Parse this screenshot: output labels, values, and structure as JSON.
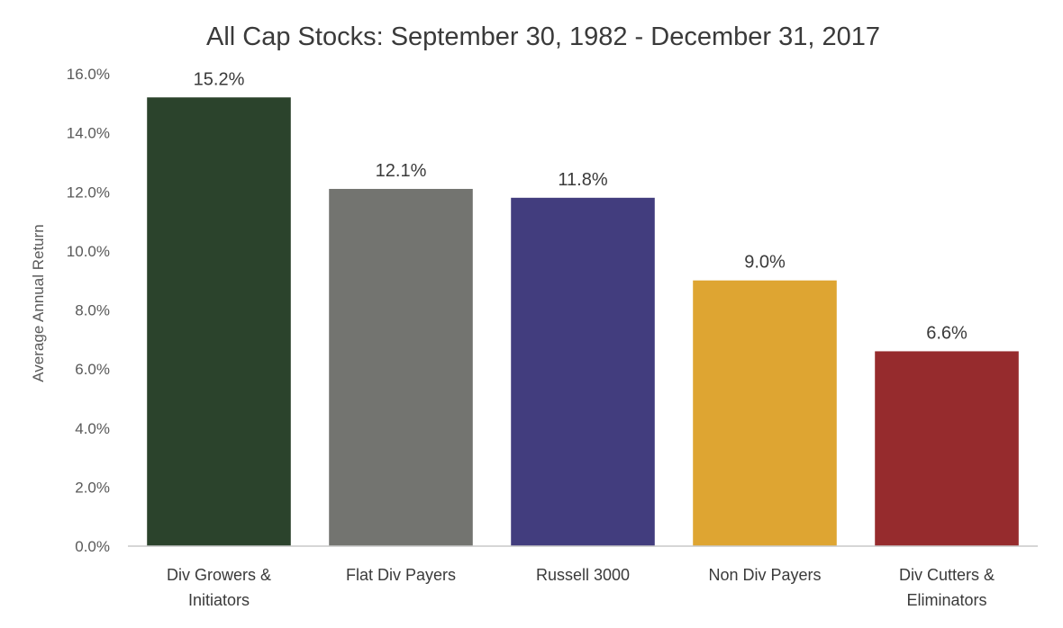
{
  "chart_data": {
    "type": "bar",
    "title": "All Cap Stocks: September 30, 1982 - December 31, 2017",
    "xlabel": "",
    "ylabel": "Average Annual Return",
    "ylim": [
      0,
      16
    ],
    "ytick_step": 2,
    "ytick_labels": [
      "0.0%",
      "2.0%",
      "4.0%",
      "6.0%",
      "8.0%",
      "10.0%",
      "12.0%",
      "14.0%",
      "16.0%"
    ],
    "grid": false,
    "legend": "none",
    "categories": [
      [
        "Div Growers &",
        "Initiators"
      ],
      [
        "Flat Div Payers"
      ],
      [
        "Russell 3000"
      ],
      [
        "Non Div Payers"
      ],
      [
        "Div Cutters &",
        "Eliminators"
      ]
    ],
    "values": [
      15.2,
      12.1,
      11.8,
      9.0,
      6.6
    ],
    "data_labels": [
      "15.2%",
      "12.1%",
      "11.8%",
      "9.0%",
      "6.6%"
    ],
    "colors": [
      "#2b432c",
      "#737470",
      "#423d7e",
      "#dea532",
      "#962b2d"
    ]
  }
}
